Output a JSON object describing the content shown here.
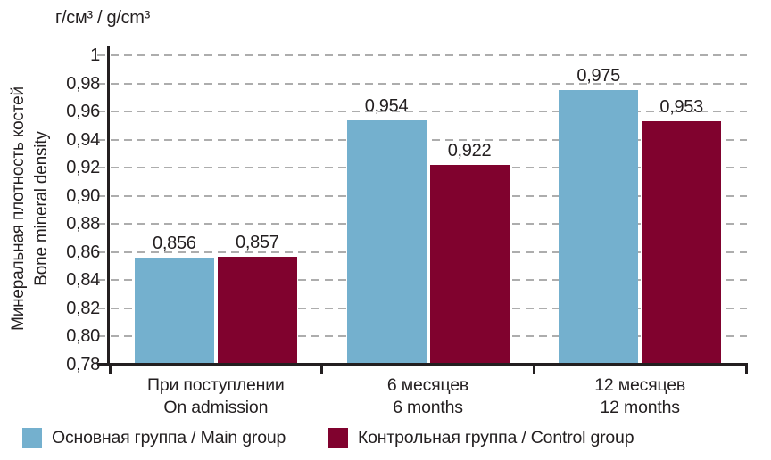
{
  "figure": {
    "title": "г/см³ / g/cm³",
    "y_axis_label_line1": "Минеральная плотность костей",
    "y_axis_label_line2": "Bone mineral density"
  },
  "colors": {
    "main_group": "#74B0CE",
    "control_group": "#80022E",
    "gridline": "#ADADAD",
    "axis": "#231F20",
    "text": "#231F20",
    "background": "#FFFFFF"
  },
  "chart_data": {
    "type": "bar",
    "title": "г/см³ / g/cm³",
    "ylabel": [
      "Минеральная плотность костей",
      "Bone mineral density"
    ],
    "xlabel": "",
    "categories": [
      {
        "line1": "При поступлении",
        "line2": "On admission"
      },
      {
        "line1": "6 месяцев",
        "line2": "6 months"
      },
      {
        "line1": "12 месяцев",
        "line2": "12 months"
      }
    ],
    "series": [
      {
        "name": "Основная группа / Main group",
        "color": "#74B0CE",
        "values": [
          0.856,
          0.954,
          0.975
        ],
        "value_labels": [
          "0,856",
          "0,954",
          "0,975"
        ]
      },
      {
        "name": "Контрольная группа / Control group",
        "color": "#80022E",
        "values": [
          0.857,
          0.922,
          0.953
        ],
        "value_labels": [
          "0,857",
          "0,922",
          "0,953"
        ]
      }
    ],
    "ylim": [
      0.78,
      1.0
    ],
    "ytick_step": 0.02,
    "ytick_labels": [
      "1",
      "0,98",
      "0,96",
      "0,94",
      "0,92",
      "0,90",
      "0,88",
      "0,86",
      "0,84",
      "0,82",
      "0,80",
      "0,78"
    ],
    "grid": "horizontal-dashed",
    "legend_position": "bottom"
  }
}
